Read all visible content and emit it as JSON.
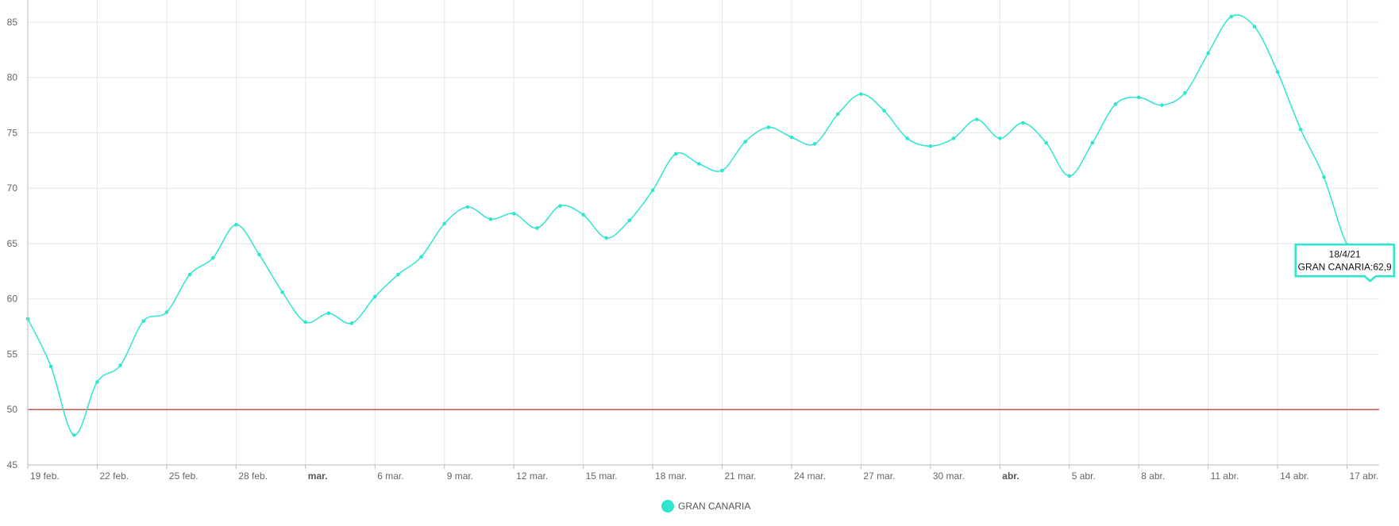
{
  "chart_data": {
    "type": "line",
    "title": "",
    "xlabel": "",
    "ylabel": "",
    "ylim": [
      45,
      87
    ],
    "y_ticks": [
      45,
      50,
      55,
      60,
      65,
      70,
      75,
      80,
      85
    ],
    "grid": true,
    "legend_position": "bottom-center",
    "x": [
      "19/2/21",
      "20/2/21",
      "21/2/21",
      "22/2/21",
      "23/2/21",
      "24/2/21",
      "25/2/21",
      "26/2/21",
      "27/2/21",
      "28/2/21",
      "1/3/21",
      "2/3/21",
      "3/3/21",
      "4/3/21",
      "5/3/21",
      "6/3/21",
      "7/3/21",
      "8/3/21",
      "9/3/21",
      "10/3/21",
      "11/3/21",
      "12/3/21",
      "13/3/21",
      "14/3/21",
      "15/3/21",
      "16/3/21",
      "17/3/21",
      "18/3/21",
      "19/3/21",
      "20/3/21",
      "21/3/21",
      "22/3/21",
      "23/3/21",
      "24/3/21",
      "25/3/21",
      "26/3/21",
      "27/3/21",
      "28/3/21",
      "29/3/21",
      "30/3/21",
      "31/3/21",
      "1/4/21",
      "2/4/21",
      "3/4/21",
      "4/4/21",
      "5/4/21",
      "6/4/21",
      "7/4/21",
      "8/4/21",
      "9/4/21",
      "10/4/21",
      "11/4/21",
      "12/4/21",
      "13/4/21",
      "14/4/21",
      "15/4/21",
      "16/4/21",
      "17/4/21",
      "18/4/21"
    ],
    "x_tick_labels": [
      {
        "label": "19 feb.",
        "index": 0,
        "bold": false
      },
      {
        "label": "22 feb.",
        "index": 3,
        "bold": false
      },
      {
        "label": "25 feb.",
        "index": 6,
        "bold": false
      },
      {
        "label": "28 feb.",
        "index": 9,
        "bold": false
      },
      {
        "label": "mar.",
        "index": 12,
        "bold": true
      },
      {
        "label": "6 mar.",
        "index": 15,
        "bold": false
      },
      {
        "label": "9 mar.",
        "index": 18,
        "bold": false
      },
      {
        "label": "12 mar.",
        "index": 21,
        "bold": false
      },
      {
        "label": "15 mar.",
        "index": 24,
        "bold": false
      },
      {
        "label": "18 mar.",
        "index": 27,
        "bold": false
      },
      {
        "label": "21 mar.",
        "index": 30,
        "bold": false
      },
      {
        "label": "24 mar.",
        "index": 33,
        "bold": false
      },
      {
        "label": "27 mar.",
        "index": 36,
        "bold": false
      },
      {
        "label": "30 mar.",
        "index": 39,
        "bold": false
      },
      {
        "label": "abr.",
        "index": 42,
        "bold": true
      },
      {
        "label": "5 abr.",
        "index": 45,
        "bold": false
      },
      {
        "label": "8 abr.",
        "index": 48,
        "bold": false
      },
      {
        "label": "11 abr.",
        "index": 51,
        "bold": false
      },
      {
        "label": "14 abr.",
        "index": 54,
        "bold": false
      },
      {
        "label": "17 abr.",
        "index": 57,
        "bold": false
      }
    ],
    "series": [
      {
        "name": "GRAN CANARIA",
        "color": "#2ee6cf",
        "values": [
          58.2,
          53.9,
          47.7,
          52.5,
          54.0,
          58.0,
          58.8,
          62.2,
          63.7,
          66.7,
          64.0,
          60.6,
          57.9,
          58.7,
          57.8,
          60.2,
          62.2,
          63.8,
          66.8,
          68.3,
          67.2,
          67.7,
          66.4,
          68.4,
          67.6,
          65.5,
          67.1,
          69.8,
          73.1,
          72.2,
          71.6,
          74.2,
          75.5,
          74.6,
          74.0,
          76.7,
          78.5,
          77.0,
          74.5,
          73.8,
          74.5,
          76.2,
          74.5,
          75.9,
          74.1,
          71.1,
          74.1,
          77.6,
          78.2,
          77.5,
          78.6,
          82.2,
          85.5,
          84.6,
          80.5,
          75.3,
          71.0,
          64.9,
          62.9
        ]
      }
    ],
    "reference_line": {
      "value": 50,
      "color": "#c0392b"
    },
    "tooltip": {
      "date": "18/4/21",
      "text": "GRAN CANARIA:62,9",
      "index": 58
    }
  }
}
